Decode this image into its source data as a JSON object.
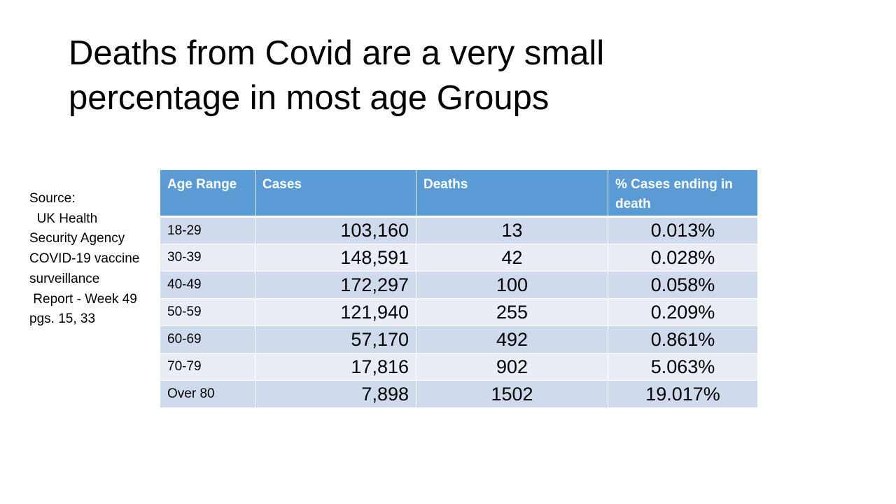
{
  "slide": {
    "title": "Deaths from Covid are a very small percentage in most age Groups",
    "source_text": "Source:\n  UK Health Security Agency COVID-19 vaccine surveillance\n Report - Week 49\npgs. 15, 33"
  },
  "table": {
    "headers": {
      "age": "Age Range",
      "cases": "Cases",
      "deaths": "Deaths",
      "pct": "% Cases ending in death"
    },
    "rows": [
      {
        "age": "18-29",
        "cases": "103,160",
        "deaths": "13",
        "pct": "0.013%"
      },
      {
        "age": "30-39",
        "cases": "148,591",
        "deaths": "42",
        "pct": "0.028%"
      },
      {
        "age": "40-49",
        "cases": "172,297",
        "deaths": "100",
        "pct": "0.058%"
      },
      {
        "age": "50-59",
        "cases": "121,940",
        "deaths": "255",
        "pct": "0.209%"
      },
      {
        "age": "60-69",
        "cases": "57,170",
        "deaths": "492",
        "pct": "0.861%"
      },
      {
        "age": "70-79",
        "cases": "17,816",
        "deaths": "902",
        "pct": "5.063%"
      },
      {
        "age": "Over 80",
        "cases": "7,898",
        "deaths": "1502",
        "pct": "19.017%"
      }
    ]
  },
  "colors": {
    "header_bg": "#5b9bd5",
    "row_odd_bg": "#cfdbed",
    "row_even_bg": "#e8edf6"
  }
}
